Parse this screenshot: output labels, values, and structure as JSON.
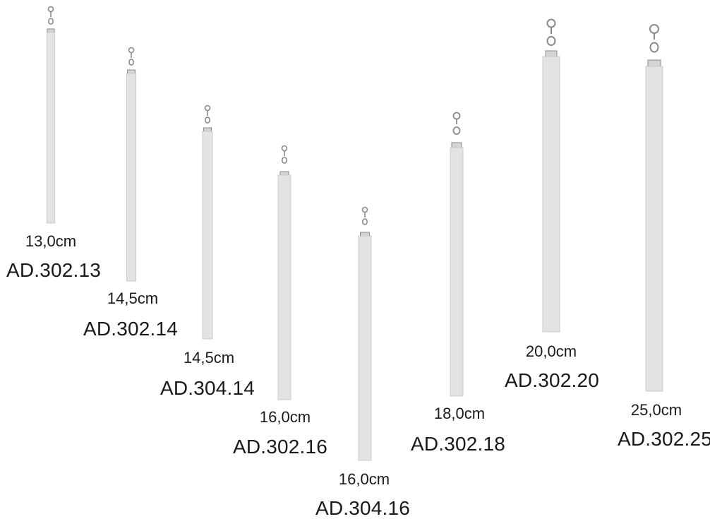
{
  "items": [
    {
      "size": "13,0cm",
      "code": "AD.302.13"
    },
    {
      "size": "14,5cm",
      "code": "AD.302.14"
    },
    {
      "size": "14,5cm",
      "code": "AD.304.14"
    },
    {
      "size": "16,0cm",
      "code": "AD.302.16"
    },
    {
      "size": "16,0cm",
      "code": "AD.304.16"
    },
    {
      "size": "18,0cm",
      "code": "AD.302.18"
    },
    {
      "size": "20,0cm",
      "code": "AD.302.20"
    },
    {
      "size": "25,0cm",
      "code": "AD.302.25"
    }
  ],
  "colors": {
    "rod_fill": "#e3e3e3",
    "rod_edge": "#c4c4c4",
    "hardware": "#8a8a8a",
    "text": "#1a1a1a"
  }
}
